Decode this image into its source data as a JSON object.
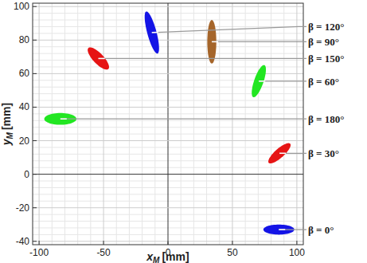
{
  "chart_data": {
    "type": "scatter",
    "x_label": {
      "symbol": "x",
      "subscript": "M",
      "unit": "[mm]"
    },
    "y_label": {
      "symbol": "y",
      "subscript": "M",
      "unit": "[mm]"
    },
    "xlim": [
      -105,
      105
    ],
    "xticks": [
      -100,
      -50,
      0,
      50,
      100
    ],
    "ylim": [
      -42,
      102
    ],
    "yticks": [
      -40,
      -20,
      0,
      20,
      40,
      60,
      80,
      100
    ],
    "grid": true,
    "marker": "ellipse",
    "series": [
      {
        "name": "β = 0°",
        "color": "#1414e6",
        "x": [
          74,
          98
        ],
        "y": [
          -33,
          -33
        ],
        "width": 6
      },
      {
        "name": "β = 30°",
        "color": "#e61414",
        "x": [
          78,
          95
        ],
        "y": [
          7,
          18
        ],
        "width": 6
      },
      {
        "name": "β = 60°",
        "color": "#22e622",
        "x": [
          66,
          75
        ],
        "y": [
          46,
          65
        ],
        "width": 7
      },
      {
        "name": "β = 90°",
        "color": "#a5652a",
        "x": [
          34,
          34
        ],
        "y": [
          66,
          92
        ],
        "width": 7
      },
      {
        "name": "β = 120°",
        "color": "#1414e6",
        "x": [
          -17,
          -8
        ],
        "y": [
          97,
          72
        ],
        "width": 7
      },
      {
        "name": "β = 150°",
        "color": "#e61414",
        "x": [
          -62,
          -46
        ],
        "y": [
          75,
          63
        ],
        "width": 7
      },
      {
        "name": "β = 180°",
        "color": "#22e622",
        "x": [
          -96,
          -71
        ],
        "y": [
          33,
          33
        ],
        "width": 7
      }
    ]
  }
}
